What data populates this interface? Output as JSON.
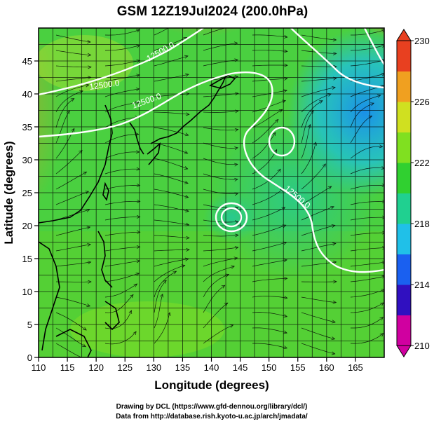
{
  "title": "GSM 12Z19Jul2024 (200.0hPa)",
  "xlabel": "Longitude (degrees)",
  "ylabel": "Latitude  (degrees)",
  "x_ticks": [
    "110",
    "115",
    "120",
    "125",
    "130",
    "135",
    "140",
    "145",
    "150",
    "155",
    "160",
    "165"
  ],
  "y_ticks": [
    "0",
    "5",
    "10",
    "15",
    "20",
    "25",
    "30",
    "35",
    "40",
    "45"
  ],
  "colorbar": {
    "labels": [
      "210",
      "214",
      "218",
      "222",
      "226",
      "230"
    ],
    "min": 210,
    "max": 230,
    "colors": [
      "#d000a0",
      "#3010c0",
      "#1a60f0",
      "#20c0e8",
      "#20d090",
      "#30d030",
      "#80e020",
      "#d0e020",
      "#f0a020",
      "#e84020"
    ]
  },
  "contour_labels": [
    "12500.0",
    "12500.0",
    "12500.0",
    "12500.0"
  ],
  "credits": {
    "line1": "Drawing by DCL (https://www.gfd-dennou.org/library/dcl/)",
    "line2": "Data from http://database.rish.kyoto-u.ac.jp/arch/jmadata/"
  },
  "chart_data": {
    "type": "heatmap",
    "title": "GSM 12Z19Jul2024 (200.0hPa)",
    "xlabel": "Longitude (degrees)",
    "ylabel": "Latitude  (degrees)",
    "xlim": [
      110,
      170
    ],
    "ylim": [
      0,
      50
    ],
    "value_range": [
      210,
      230
    ],
    "contour_value": 12500.0,
    "streamlines": true,
    "grid": true,
    "colorbar_placement": "right"
  }
}
